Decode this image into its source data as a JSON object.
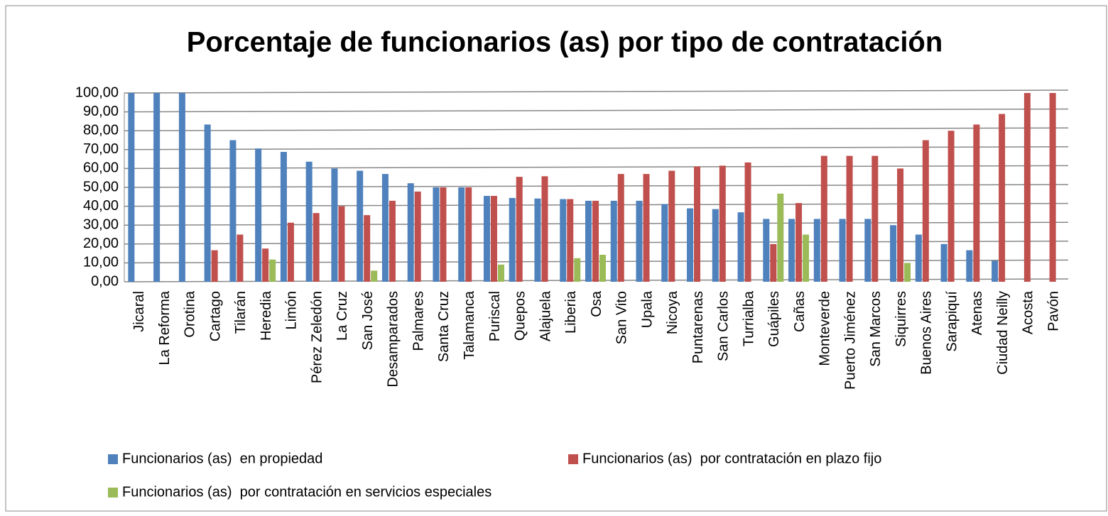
{
  "chart_data": {
    "type": "bar",
    "title": "Porcentaje de funcionarios (as) por tipo de contratación",
    "categories": [
      "Jicaral",
      "La Reforma",
      "Orotina",
      "Cartago",
      "Tilarán",
      "Heredia",
      "Limón",
      "Pérez Zeledón",
      "La Cruz",
      "San José",
      "Desamparados",
      "Palmares",
      "Santa Cruz",
      "Talamanca",
      "Puriscal",
      "Quepos",
      "Alajuela",
      "Liberia",
      "Osa",
      "San Vito",
      "Upala",
      "Nicoya",
      "Puntarenas",
      "San Carlos",
      "Turrialba",
      "Guápiles",
      "Cañas",
      "Monteverde",
      "Puerto Jiménez",
      "San Marcos",
      "Siquirres",
      "Buenos Aires",
      "Sarapiquí",
      "Atenas",
      "Ciudad Neilly",
      "Acosta",
      "Pavón"
    ],
    "series": [
      {
        "name": "Funcionarios (as)  en propiedad",
        "color": "#4f81bd",
        "values": [
          100,
          100,
          100,
          83.3,
          75,
          70.6,
          68.8,
          63.6,
          60,
          58.8,
          57.1,
          52.2,
          50,
          50,
          45.5,
          44.4,
          44.1,
          43.8,
          42.9,
          42.9,
          42.9,
          41.2,
          38.9,
          38.5,
          36.8,
          33.3,
          33.3,
          33.3,
          33.3,
          33.3,
          30,
          25,
          20,
          16.7,
          11.1,
          0,
          0
        ]
      },
      {
        "name": "Funcionarios (as)  por contratación en plazo fijo",
        "color": "#c0504d",
        "values": [
          0,
          0,
          0,
          16.7,
          25,
          17.6,
          31.3,
          36.4,
          40,
          35.3,
          42.9,
          47.8,
          50,
          50,
          45.5,
          55.6,
          55.9,
          43.8,
          42.9,
          57.1,
          57.1,
          58.8,
          61.1,
          61.5,
          63.2,
          20,
          41.7,
          66.7,
          66.7,
          66.7,
          60,
          75,
          80,
          83.3,
          88.9,
          100,
          100
        ]
      },
      {
        "name": "Funcionarios (as)  por contratación en servicios especiales",
        "color": "#9bbb59",
        "values": [
          0,
          0,
          0,
          0,
          0,
          11.8,
          0,
          0,
          0,
          5.9,
          0,
          0,
          0,
          0,
          9.1,
          0,
          0,
          12.5,
          14.3,
          0,
          0,
          0,
          0,
          0,
          0,
          46.7,
          25,
          0,
          0,
          0,
          10,
          0,
          0,
          0,
          0,
          0,
          0
        ]
      }
    ],
    "ylim": [
      0,
      100
    ],
    "yticks": [
      {
        "value": 0,
        "label": "0,00"
      },
      {
        "value": 10,
        "label": "10,00"
      },
      {
        "value": 20,
        "label": "20,00"
      },
      {
        "value": 30,
        "label": "30,00"
      },
      {
        "value": 40,
        "label": "40,00"
      },
      {
        "value": 50,
        "label": "50,00"
      },
      {
        "value": 60,
        "label": "60,00"
      },
      {
        "value": 70,
        "label": "70,00"
      },
      {
        "value": 80,
        "label": "80,00"
      },
      {
        "value": 90,
        "label": "90,00"
      },
      {
        "value": 100,
        "label": "100,00"
      }
    ],
    "grid": true
  }
}
